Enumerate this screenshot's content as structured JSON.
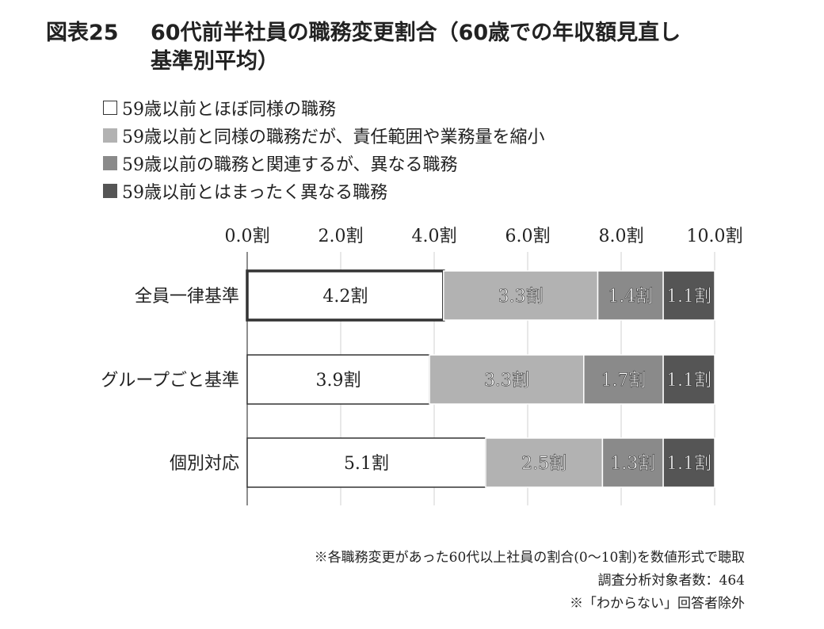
{
  "figure": {
    "number": "図表25",
    "title_line1": "60代前半社員の職務変更割合（60歳での年収額見直し",
    "title_line2": "基準別平均）"
  },
  "legend": [
    {
      "label": "59歳以前とほぼ同様の職務",
      "color": "#ffffff",
      "border": "#333333"
    },
    {
      "label": "59歳以前と同様の職務だが、責任範囲や業務量を縮小",
      "color": "#b2b2b2",
      "border": "#b2b2b2"
    },
    {
      "label": "59歳以前の職務と関連するが、異なる職務",
      "color": "#8a8a8a",
      "border": "#8a8a8a"
    },
    {
      "label": "59歳以前とはまったく異なる職務",
      "color": "#555555",
      "border": "#555555"
    }
  ],
  "chart_data": {
    "type": "bar",
    "orientation": "horizontal",
    "stacked": true,
    "categories": [
      "全員一律基準",
      "グループごと基準",
      "個別対応"
    ],
    "series": [
      {
        "name": "59歳以前とほぼ同様の職務",
        "values": [
          4.2,
          3.9,
          5.1
        ],
        "labels": [
          "4.2割",
          "3.9割",
          "5.1割"
        ],
        "color": "#ffffff"
      },
      {
        "name": "59歳以前と同様の職務だが、責任範囲や業務量を縮小",
        "values": [
          3.3,
          3.3,
          2.5
        ],
        "labels": [
          "3.3割",
          "3.3割",
          "2.5割"
        ],
        "color": "#b2b2b2"
      },
      {
        "name": "59歳以前の職務と関連するが、異なる職務",
        "values": [
          1.4,
          1.7,
          1.3
        ],
        "labels": [
          "1.4割",
          "1.7割",
          "1.3割"
        ],
        "color": "#8a8a8a"
      },
      {
        "name": "59歳以前とはまったく異なる職務",
        "values": [
          1.1,
          1.1,
          1.1
        ],
        "labels": [
          "1.1割",
          "1.1割",
          "1.1割"
        ],
        "color": "#555555"
      }
    ],
    "xlim": [
      0,
      10
    ],
    "xticks": [
      0,
      2,
      4,
      6,
      8,
      10
    ],
    "xtick_labels": [
      "0.0割",
      "2.0割",
      "4.0割",
      "6.0割",
      "8.0割",
      "10.0割"
    ],
    "axis_position": "top",
    "grid": true,
    "highlight_category": 0
  },
  "notes": [
    "※各職務変更があった60代以上社員の割合(0～10割)を数値形式で聴取",
    "調査分析対象者数：464",
    "※「わからない」回答者除外"
  ]
}
